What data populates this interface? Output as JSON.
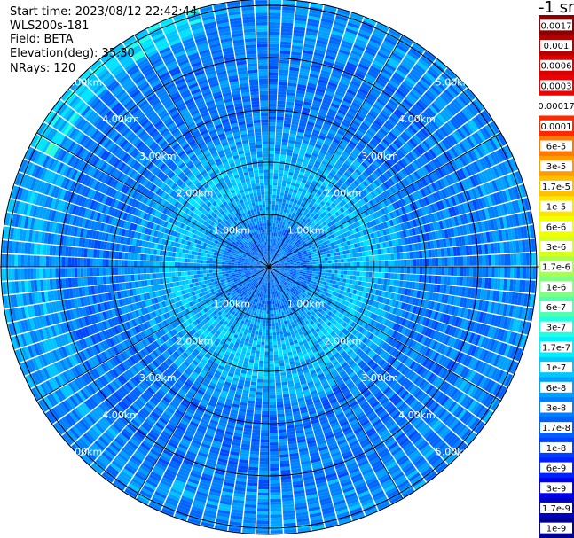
{
  "info": {
    "start_time": "Start time: 2023/08/12 22:42:44",
    "instrument": "WLS200s-181",
    "field": "Field: BETA",
    "elevation": "Elevation(deg): 35.30",
    "nrays": "NRays: 120"
  },
  "chart_data": {
    "type": "heatmap",
    "projection": "polar-ppi",
    "n_rays": 120,
    "elevation_deg": 35.3,
    "range_rings_km": [
      1,
      2,
      3,
      4,
      5
    ],
    "ring_labels": [
      "1.00km",
      "2.00km",
      "3.00km",
      "4.00km",
      "5.00km"
    ],
    "azimuth_spokes_deg": [
      0,
      30,
      60,
      90,
      120,
      150,
      180,
      210,
      240,
      270,
      300,
      330
    ],
    "max_range_km": 5.1,
    "colorbar": {
      "title": "-1 sr",
      "scale": "log",
      "labels": [
        "0.0017",
        "0.001",
        "0.0006",
        "0.0003",
        "0.00017",
        "0.0001",
        "6e-5",
        "3e-5",
        "1.7e-5",
        "1e-5",
        "6e-6",
        "3e-6",
        "1.7e-6",
        "1e-6",
        "6e-7",
        "3e-7",
        "1.7e-7",
        "1e-7",
        "6e-8",
        "3e-8",
        "1.7e-8",
        "1e-8",
        "6e-9",
        "3e-9",
        "1.7e-9",
        "1e-9"
      ],
      "colors": [
        "#8b0000",
        "#b40000",
        "#d80000",
        "#f00000",
        "#ffffff",
        "#ff2800",
        "#ff7800",
        "#ff9a00",
        "#ffc000",
        "#ffe600",
        "#f2ff00",
        "#d6ff1e",
        "#a8ff50",
        "#80ff80",
        "#50ffb0",
        "#20ffe0",
        "#00f0ff",
        "#00c8ff",
        "#00a0ff",
        "#0080ff",
        "#0060ff",
        "#0040ff",
        "#0020ff",
        "#0000ee",
        "#0000c0",
        "#000090"
      ]
    },
    "data_field": "BETA",
    "typical_value_range": [
      "1e-8",
      "3e-7"
    ]
  }
}
